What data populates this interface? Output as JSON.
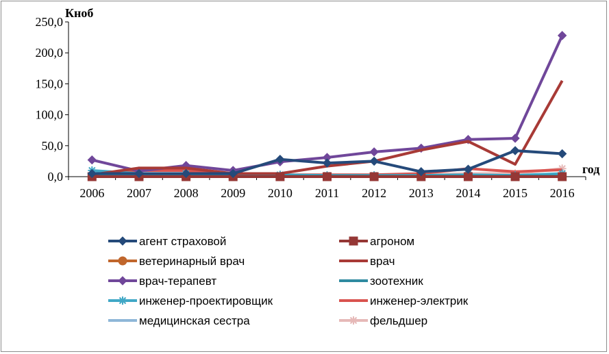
{
  "chart_data": {
    "type": "line",
    "ylabel": "Кноб",
    "xlabel": "год",
    "categories": [
      "2006",
      "2007",
      "2008",
      "2009",
      "2010",
      "2011",
      "2012",
      "2013",
      "2014",
      "2015",
      "2016"
    ],
    "y_ticks": [
      "0,0",
      "50,0",
      "100,0",
      "150,0",
      "200,0",
      "250,0"
    ],
    "ylim": [
      0,
      250
    ],
    "grid": false,
    "legend_position": "bottom",
    "series": [
      {
        "name": "агент страховой",
        "color": "#254a7a",
        "marker": "diamond",
        "values": [
          5,
          5,
          5,
          5,
          28,
          22,
          25,
          8,
          12,
          42,
          37
        ]
      },
      {
        "name": "агроном",
        "color": "#953735",
        "marker": "square",
        "values": [
          0,
          0,
          0,
          0,
          0,
          0,
          0,
          0,
          0,
          0,
          0
        ]
      },
      {
        "name": "ветеринарный врач",
        "color": "#c0662c",
        "marker": "circle",
        "values": [
          0,
          0,
          0,
          0,
          0,
          0,
          0,
          0,
          0,
          0,
          0
        ]
      },
      {
        "name": "врач",
        "color": "#a83a36",
        "marker": "none",
        "values": [
          3,
          14,
          14,
          5,
          5,
          17,
          25,
          43,
          57,
          20,
          155
        ]
      },
      {
        "name": "врач-терапевт",
        "color": "#70479a",
        "marker": "diamond",
        "values": [
          27,
          9,
          18,
          10,
          24,
          31,
          40,
          46,
          60,
          62,
          228
        ]
      },
      {
        "name": "зоотехник",
        "color": "#2f8aa0",
        "marker": "none",
        "values": [
          1,
          1,
          1,
          1,
          1,
          1,
          1,
          1,
          1,
          1,
          1
        ]
      },
      {
        "name": "инженер-проектировщик",
        "color": "#41a8c6",
        "marker": "star",
        "values": [
          10,
          5,
          5,
          3,
          3,
          2,
          2,
          2,
          3,
          2,
          5
        ]
      },
      {
        "name": "инженер-электрик",
        "color": "#d9534f",
        "marker": "none",
        "values": [
          3,
          10,
          10,
          3,
          3,
          3,
          3,
          5,
          13,
          8,
          11
        ]
      },
      {
        "name": "медицинская сестра",
        "color": "#8fb7d8",
        "marker": "none",
        "values": [
          2,
          2,
          2,
          2,
          2,
          2,
          2,
          2,
          2,
          2,
          3
        ]
      },
      {
        "name": "фельдшер",
        "color": "#e6b9b8",
        "marker": "star",
        "values": [
          2,
          2,
          2,
          2,
          2,
          2,
          2,
          3,
          5,
          5,
          13
        ]
      }
    ]
  }
}
